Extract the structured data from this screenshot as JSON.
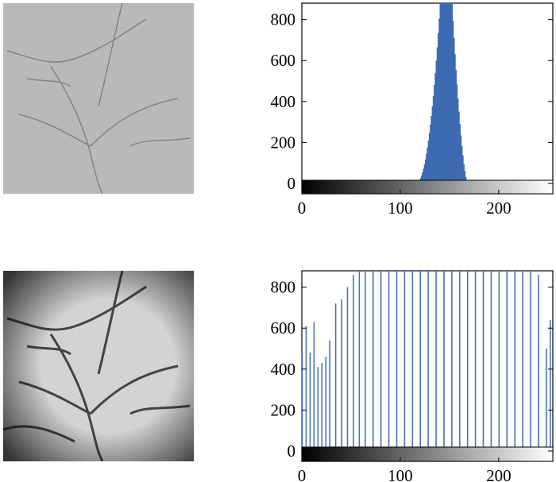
{
  "chart_data": [
    {
      "type": "bar",
      "panel": "top",
      "xlim": [
        0,
        255
      ],
      "ylim": [
        -50,
        880
      ],
      "yticks": [
        0,
        200,
        400,
        600,
        800
      ],
      "xticks": [
        0,
        100,
        200
      ],
      "colorbar": "grayscale",
      "bar_color": "#3d6ab0",
      "distribution": {
        "shape": "bell",
        "start": 115,
        "peak_start": 140,
        "peak_end": 152,
        "end": 168,
        "peak_value": 880
      }
    },
    {
      "type": "bar",
      "panel": "bottom",
      "xlim": [
        0,
        255
      ],
      "ylim": [
        -50,
        880
      ],
      "yticks": [
        0,
        200,
        400,
        600,
        800
      ],
      "xticks": [
        0,
        100,
        200
      ],
      "colorbar": "grayscale",
      "bar_color": "#4a72b8",
      "x": [
        0,
        4,
        8,
        12,
        16,
        20,
        24,
        28,
        34,
        40,
        46,
        52,
        58,
        64,
        72,
        80,
        88,
        96,
        104,
        112,
        120,
        128,
        136,
        144,
        152,
        160,
        168,
        176,
        184,
        192,
        200,
        208,
        216,
        224,
        232,
        240,
        248,
        252
      ],
      "values": [
        480,
        610,
        480,
        630,
        410,
        430,
        460,
        540,
        720,
        740,
        800,
        860,
        880,
        880,
        880,
        880,
        880,
        880,
        880,
        880,
        880,
        880,
        880,
        880,
        880,
        880,
        880,
        880,
        880,
        880,
        880,
        880,
        880,
        880,
        880,
        860,
        500,
        640
      ]
    }
  ],
  "images": {
    "top": "palm-veins-original",
    "bottom": "palm-veins-enhanced"
  }
}
